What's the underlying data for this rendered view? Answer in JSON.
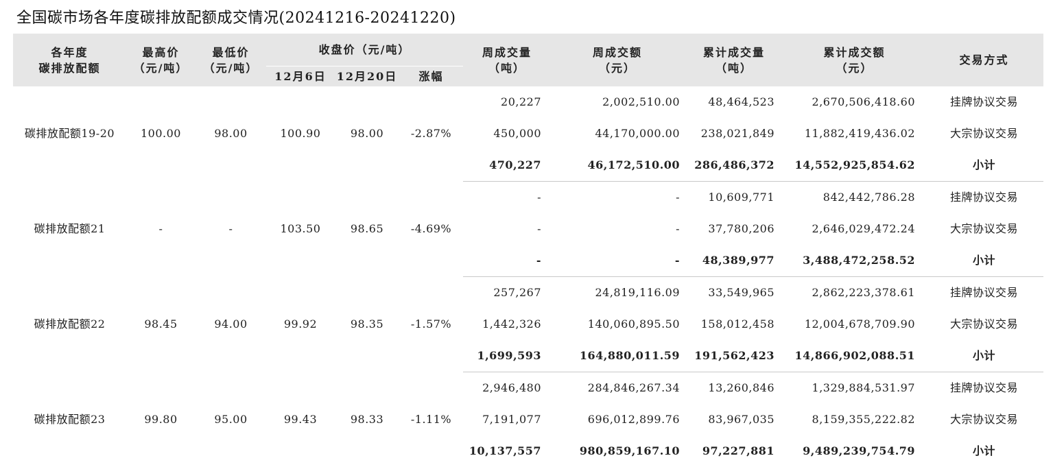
{
  "title": "全国碳市场各年度碳排放配额成交情况(20241216-20241220)",
  "header": {
    "vintage_line1": "各年度",
    "vintage_line2": "碳排放配额",
    "high_line1": "最高价",
    "high_line2": "（元/吨）",
    "low_line1": "最低价",
    "low_line2": "（元/吨）",
    "close_group": "收盘价（元/吨）",
    "close_dec6": "12月6日",
    "close_dec20": "12月20日",
    "change": "涨幅",
    "week_vol_line1": "周成交量",
    "week_vol_line2": "（吨）",
    "week_amt_line1": "周成交额",
    "week_amt_line2": "（元）",
    "cum_vol_line1": "累计成交量",
    "cum_vol_line2": "（吨）",
    "cum_amt_line1": "累计成交额",
    "cum_amt_line2": "（元）",
    "method": "交易方式"
  },
  "groups": [
    {
      "name": "碳排放配额19-20",
      "high": "100.00",
      "low": "98.00",
      "close_dec6": "100.90",
      "close_dec20": "98.00",
      "change": "-2.87%",
      "rows": [
        {
          "week_vol": "20,227",
          "week_amt": "2,002,510.00",
          "cum_vol": "48,464,523",
          "cum_amt": "2,670,506,418.60",
          "method": "挂牌协议交易"
        },
        {
          "week_vol": "450,000",
          "week_amt": "44,170,000.00",
          "cum_vol": "238,021,849",
          "cum_amt": "11,882,419,436.02",
          "method": "大宗协议交易"
        },
        {
          "week_vol": "470,227",
          "week_amt": "46,172,510.00",
          "cum_vol": "286,486,372",
          "cum_amt": "14,552,925,854.62",
          "method": "小计"
        }
      ]
    },
    {
      "name": "碳排放配额21",
      "high": "-",
      "low": "-",
      "close_dec6": "103.50",
      "close_dec20": "98.65",
      "change": "-4.69%",
      "rows": [
        {
          "week_vol": "-",
          "week_amt": "-",
          "cum_vol": "10,609,771",
          "cum_amt": "842,442,786.28",
          "method": "挂牌协议交易"
        },
        {
          "week_vol": "-",
          "week_amt": "-",
          "cum_vol": "37,780,206",
          "cum_amt": "2,646,029,472.24",
          "method": "大宗协议交易"
        },
        {
          "week_vol": "-",
          "week_amt": "-",
          "cum_vol": "48,389,977",
          "cum_amt": "3,488,472,258.52",
          "method": "小计"
        }
      ]
    },
    {
      "name": "碳排放配额22",
      "high": "98.45",
      "low": "94.00",
      "close_dec6": "99.92",
      "close_dec20": "98.35",
      "change": "-1.57%",
      "rows": [
        {
          "week_vol": "257,267",
          "week_amt": "24,819,116.09",
          "cum_vol": "33,549,965",
          "cum_amt": "2,862,223,378.61",
          "method": "挂牌协议交易"
        },
        {
          "week_vol": "1,442,326",
          "week_amt": "140,060,895.50",
          "cum_vol": "158,012,458",
          "cum_amt": "12,004,678,709.90",
          "method": "大宗协议交易"
        },
        {
          "week_vol": "1,699,593",
          "week_amt": "164,880,011.59",
          "cum_vol": "191,562,423",
          "cum_amt": "14,866,902,088.51",
          "method": "小计"
        }
      ]
    },
    {
      "name": "碳排放配额23",
      "high": "99.80",
      "low": "95.00",
      "close_dec6": "99.43",
      "close_dec20": "98.33",
      "change": "-1.11%",
      "rows": [
        {
          "week_vol": "2,946,480",
          "week_amt": "284,846,267.34",
          "cum_vol": "13,260,846",
          "cum_amt": "1,329,884,531.97",
          "method": "挂牌协议交易"
        },
        {
          "week_vol": "7,191,077",
          "week_amt": "696,012,899.76",
          "cum_vol": "83,967,035",
          "cum_amt": "8,159,355,222.82",
          "method": "大宗协议交易"
        },
        {
          "week_vol": "10,137,557",
          "week_amt": "980,859,167.10",
          "cum_vol": "97,227,881",
          "cum_amt": "9,489,239,754.79",
          "method": "小计"
        }
      ]
    }
  ]
}
